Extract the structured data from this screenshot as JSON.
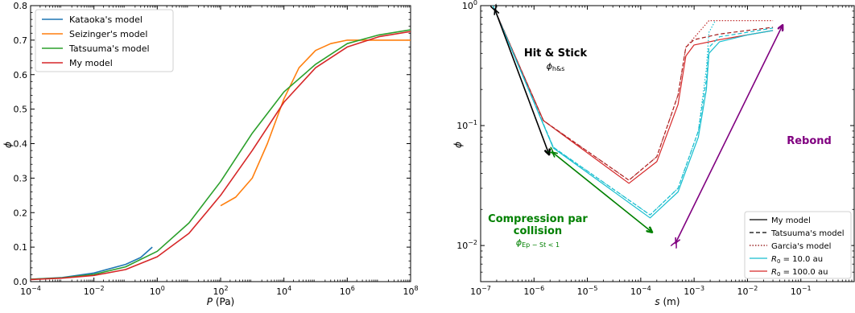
{
  "chart_data": [
    {
      "type": "line",
      "xlabel": "P (Pa)",
      "ylabel": "ϕ",
      "xscale": "log",
      "xlim": [
        0.0001,
        100000000
      ],
      "ylim": [
        0.0,
        0.8
      ],
      "xticks": [
        {
          "v": 0.0001,
          "b": "10",
          "e": "−4"
        },
        {
          "v": 0.01,
          "b": "10",
          "e": "−2"
        },
        {
          "v": 1,
          "b": "10",
          "e": "0"
        },
        {
          "v": 100,
          "b": "10",
          "e": "2"
        },
        {
          "v": 10000,
          "b": "10",
          "e": "4"
        },
        {
          "v": 1000000,
          "b": "10",
          "e": "6"
        },
        {
          "v": 100000000,
          "b": "10",
          "e": "8"
        }
      ],
      "yticks": [
        "0.0",
        "0.1",
        "0.2",
        "0.3",
        "0.4",
        "0.5",
        "0.6",
        "0.7",
        "0.8"
      ],
      "legend_position": "top-left",
      "series": [
        {
          "name": "Kataoka's model",
          "color": "#1f77b4",
          "x": [
            0.0001,
            0.001,
            0.01,
            0.1,
            0.3,
            0.7
          ],
          "y": [
            0.007,
            0.012,
            0.025,
            0.05,
            0.07,
            0.1
          ]
        },
        {
          "name": "Seizinger's model",
          "color": "#ff7f0e",
          "x": [
            100,
            300,
            1000,
            3000,
            10000,
            30000,
            100000,
            300000,
            1000000,
            10000000,
            100000000
          ],
          "y": [
            0.22,
            0.245,
            0.3,
            0.4,
            0.53,
            0.62,
            0.67,
            0.69,
            0.7,
            0.7,
            0.7
          ]
        },
        {
          "name": "Tatsuuma's model",
          "color": "#2ca02c",
          "x": [
            0.0001,
            0.001,
            0.01,
            0.1,
            1,
            10,
            100,
            1000,
            10000,
            100000,
            1000000,
            10000000,
            100000000
          ],
          "y": [
            0.007,
            0.011,
            0.021,
            0.043,
            0.088,
            0.17,
            0.29,
            0.43,
            0.55,
            0.63,
            0.69,
            0.715,
            0.73
          ]
        },
        {
          "name": "My model",
          "color": "#d62728",
          "x": [
            0.0001,
            0.001,
            0.01,
            0.1,
            1,
            10,
            100,
            1000,
            10000,
            100000,
            1000000,
            10000000,
            100000000
          ],
          "y": [
            0.006,
            0.01,
            0.018,
            0.035,
            0.072,
            0.14,
            0.25,
            0.38,
            0.52,
            0.62,
            0.68,
            0.71,
            0.725
          ]
        }
      ]
    },
    {
      "type": "line",
      "xlabel": "s (m)",
      "ylabel": "ϕ",
      "xscale": "log",
      "yscale": "log",
      "xlim": [
        1e-07,
        1
      ],
      "ylim": [
        0.005,
        1
      ],
      "xticks": [
        {
          "v": 1e-07,
          "b": "10",
          "e": "−7"
        },
        {
          "v": 1e-06,
          "b": "10",
          "e": "−6"
        },
        {
          "v": 1e-05,
          "b": "10",
          "e": "−5"
        },
        {
          "v": 0.0001,
          "b": "10",
          "e": "−4"
        },
        {
          "v": 0.001,
          "b": "10",
          "e": "−3"
        },
        {
          "v": 0.01,
          "b": "10",
          "e": "−2"
        },
        {
          "v": 0.1,
          "b": "10",
          "e": "−1"
        }
      ],
      "yticks": [
        {
          "v": 0.01,
          "b": "10",
          "e": "−2"
        },
        {
          "v": 0.1,
          "b": "10",
          "e": "−1"
        },
        {
          "v": 1,
          "b": "10",
          "e": "0"
        }
      ],
      "legend_position": "bottom-right",
      "legend": [
        {
          "label": "My model",
          "style": "solid",
          "color": "#000000"
        },
        {
          "label": "Tatsuuma's model",
          "style": "dashed",
          "color": "#000000"
        },
        {
          "label": "Garcia's model",
          "style": "dotted",
          "color": "#8b0000"
        },
        {
          "label": "R",
          "sub": "0",
          "rest": " = 10.0 au",
          "style": "solid",
          "color": "#17becf"
        },
        {
          "label": "R",
          "sub": "0",
          "rest": " = 100.0 au",
          "style": "solid",
          "color": "#d62728"
        }
      ],
      "series": [
        {
          "color": "#d62728",
          "style": "solid",
          "x": [
            1.7e-07,
            1.5e-06,
            6e-05,
            0.0002,
            0.0005,
            0.0007,
            0.001,
            0.003,
            0.01,
            0.03
          ],
          "y": [
            1.0,
            0.11,
            0.033,
            0.05,
            0.15,
            0.38,
            0.47,
            0.52,
            0.57,
            0.62
          ]
        },
        {
          "color": "#a01818",
          "style": "dashed",
          "x": [
            1.7e-07,
            1.5e-06,
            6e-05,
            0.0002,
            0.0005,
            0.0007,
            0.001,
            0.003,
            0.01,
            0.03
          ],
          "y": [
            1.0,
            0.11,
            0.035,
            0.055,
            0.18,
            0.45,
            0.52,
            0.58,
            0.62,
            0.66
          ]
        },
        {
          "color": "#c03030",
          "style": "dotted",
          "x": [
            1.7e-07,
            1.5e-06,
            6e-05,
            0.0002,
            0.0005,
            0.0007,
            0.0019,
            0.03
          ],
          "y": [
            1.0,
            0.11,
            0.035,
            0.055,
            0.18,
            0.45,
            0.75,
            0.75
          ]
        },
        {
          "color": "#17becf",
          "style": "solid",
          "x": [
            1.7e-07,
            2.3e-06,
            0.00015,
            0.0005,
            0.0012,
            0.0017,
            0.0019,
            0.003,
            0.01,
            0.03
          ],
          "y": [
            1.0,
            0.065,
            0.017,
            0.028,
            0.08,
            0.2,
            0.4,
            0.5,
            0.57,
            0.62
          ]
        },
        {
          "color": "#17becf",
          "style": "dashed",
          "x": [
            1.7e-07,
            2.3e-06,
            0.00015,
            0.0005,
            0.0012,
            0.0017,
            0.0019,
            0.003,
            0.01,
            0.03
          ],
          "y": [
            1.0,
            0.066,
            0.018,
            0.03,
            0.09,
            0.24,
            0.45,
            0.55,
            0.6,
            0.65
          ]
        },
        {
          "color": "#17becf",
          "style": "dotted",
          "x": [
            1.7e-07,
            2.3e-06,
            0.00015,
            0.0005,
            0.0012,
            0.0017,
            0.0019,
            0.0025
          ],
          "y": [
            1.0,
            0.066,
            0.018,
            0.03,
            0.09,
            0.3,
            0.6,
            0.75
          ]
        }
      ],
      "annotations": {
        "hit_stick": {
          "title": "Hit & Stick",
          "sub_base": "ϕ",
          "sub_script": "h&s",
          "color": "#000000"
        },
        "compression": {
          "line1": "Compression par",
          "line2": "collision",
          "sub_base": "ϕ",
          "sub_script": "Ep − St < 1",
          "color": "#008000"
        },
        "rebond": {
          "title": "Rebond",
          "color": "#800080"
        }
      },
      "arrows": [
        {
          "color": "#000000",
          "from": [
            1.85e-07,
            0.93
          ],
          "to": [
            1.9e-06,
            0.058
          ]
        },
        {
          "color": "#008000",
          "from": [
            2.2e-06,
            0.06
          ],
          "to": [
            0.00016,
            0.013
          ]
        },
        {
          "color": "#800080",
          "from": [
            0.00045,
            0.0105
          ],
          "to": [
            0.045,
            0.68
          ]
        }
      ]
    }
  ]
}
